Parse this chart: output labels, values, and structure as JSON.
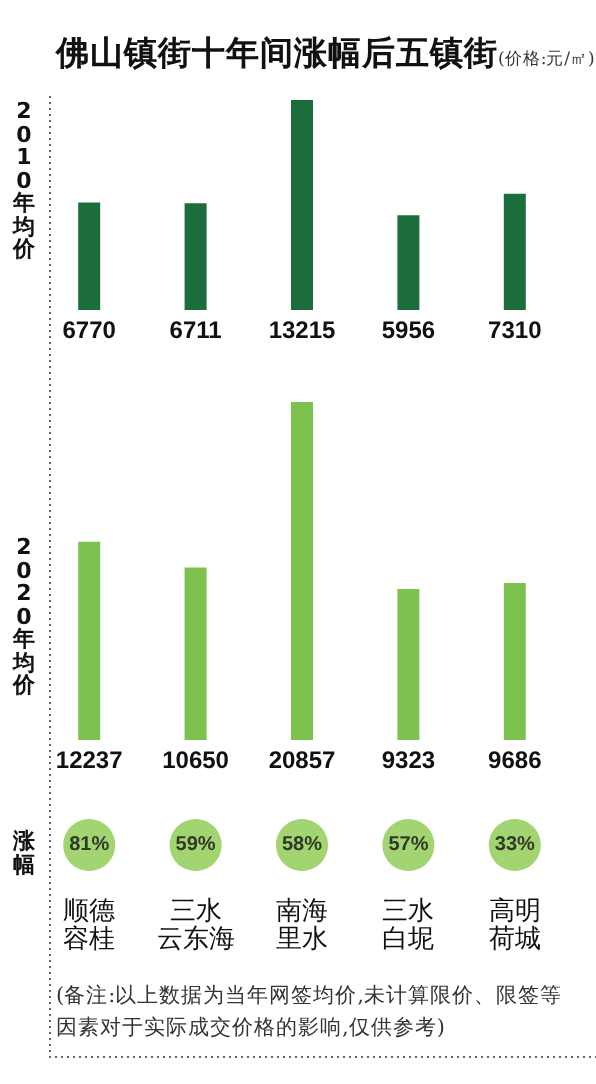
{
  "chart_data": [
    {
      "type": "bar",
      "title": "佛山镇街十年间涨幅后五镇街",
      "subtitle": "(价格:元/㎡)",
      "ylabel": "2010年均价",
      "values": [
        6770,
        6711,
        13215,
        5956,
        7310
      ],
      "color": "#1b6e3c",
      "data_labels": true
    },
    {
      "type": "bar",
      "ylabel": "2020年均价",
      "values": [
        12237,
        10650,
        20857,
        9323,
        9686
      ],
      "color": "#7dc24f",
      "data_labels": true
    },
    {
      "type": "other",
      "ylabel": "涨幅",
      "categories": [
        "顺德容桂",
        "三水云东海",
        "南海里水",
        "三水白坭",
        "高明荷城"
      ],
      "values": [
        81,
        59,
        58,
        57,
        33
      ],
      "value_labels": [
        "81%",
        "59%",
        "58%",
        "57%",
        "33%"
      ],
      "color": "#8cc94f",
      "annotations": [
        "(备注:以上数据为当年网签均价,未计算限价、限签等因素对于实际成交价格的影响,仅供参考)"
      ]
    }
  ]
}
